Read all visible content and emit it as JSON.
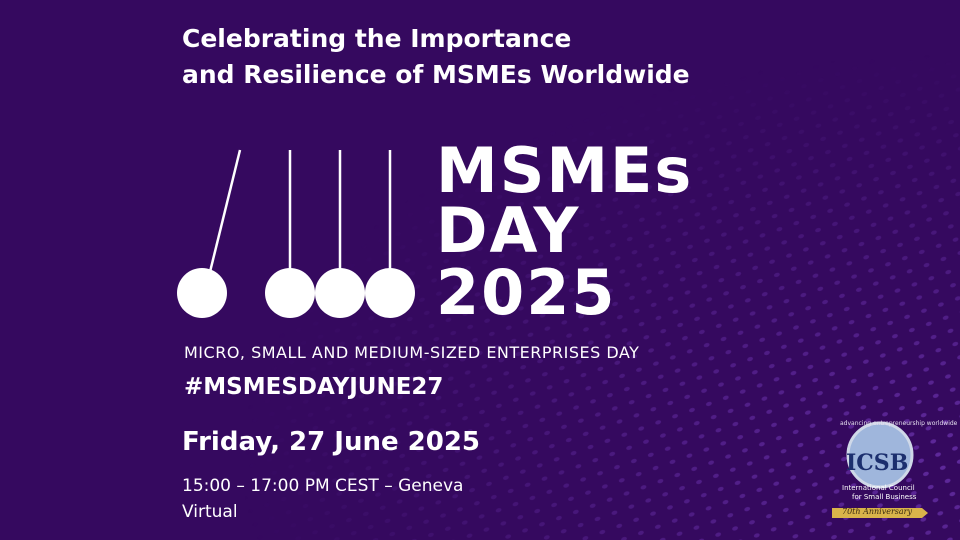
{
  "headline": {
    "lines": [
      "Celebrating the Importance",
      "and Resilience of MSMEs Worldwide"
    ]
  },
  "event_title": {
    "lines": [
      "MSMEs",
      "DAY",
      "2025"
    ]
  },
  "subtitle": "MICRO, SMALL AND MEDIUM-SIZED ENTERPRISES DAY",
  "hashtag": "#MSMESDAYJUNE27",
  "date": "Friday, 27 June 2025",
  "time": "15:00 – 17:00 PM CEST – Geneva",
  "format": "Virtual",
  "logo": {
    "motto": "advancing entrepreneurship worldwide",
    "acronym": "ICSB",
    "name": [
      "International Council",
      "for Small Business"
    ],
    "anniversary": "70th Anniversary"
  }
}
